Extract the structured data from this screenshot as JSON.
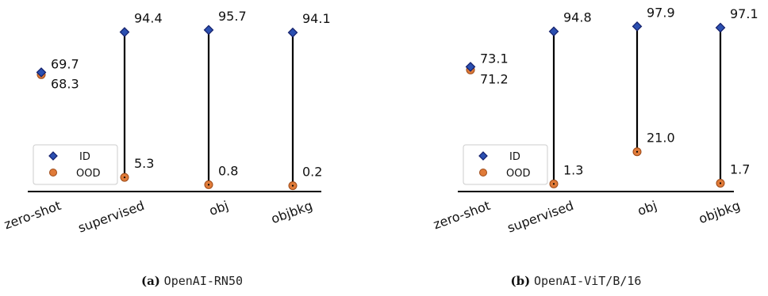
{
  "chart_data": [
    {
      "type": "dumbbell",
      "caption": {
        "label": "(a)",
        "model": "OpenAI-RN50"
      },
      "categories": [
        "zero-shot",
        "supervised",
        "obj",
        "objbkg"
      ],
      "series": [
        {
          "name": "ID",
          "values": [
            69.7,
            94.4,
            95.7,
            94.1
          ]
        },
        {
          "name": "OOD",
          "values": [
            68.3,
            5.3,
            0.8,
            0.2
          ]
        }
      ],
      "labels": {
        "ID": [
          "69.7",
          "94.4",
          "95.7",
          "94.1"
        ],
        "OOD": [
          "68.3",
          "5.3",
          "0.8",
          "0.2"
        ]
      },
      "ylim": [
        0,
        100
      ],
      "legend": "bottom-left",
      "grid": false
    },
    {
      "type": "dumbbell",
      "caption": {
        "label": "(b)",
        "model": "OpenAI-ViT/B/16"
      },
      "categories": [
        "zero-shot",
        "supervised",
        "obj",
        "objbkg"
      ],
      "series": [
        {
          "name": "ID",
          "values": [
            73.1,
            94.8,
            97.9,
            97.1
          ]
        },
        {
          "name": "OOD",
          "values": [
            71.2,
            1.3,
            21.0,
            1.7
          ]
        }
      ],
      "labels": {
        "ID": [
          "73.1",
          "94.8",
          "97.9",
          "97.1"
        ],
        "OOD": [
          "71.2",
          "1.3",
          "21.0",
          "1.7"
        ]
      },
      "ylim": [
        0,
        100
      ],
      "legend": "bottom-left",
      "grid": false
    }
  ],
  "colors": {
    "id_fill": "#2b4fb0",
    "id_edge": "#14206b",
    "ood_fill": "#e07b39",
    "ood_edge": "#9c4a18",
    "stem": "#000000"
  },
  "icons": {
    "id_marker": "diamond",
    "ood_marker": "circle"
  }
}
